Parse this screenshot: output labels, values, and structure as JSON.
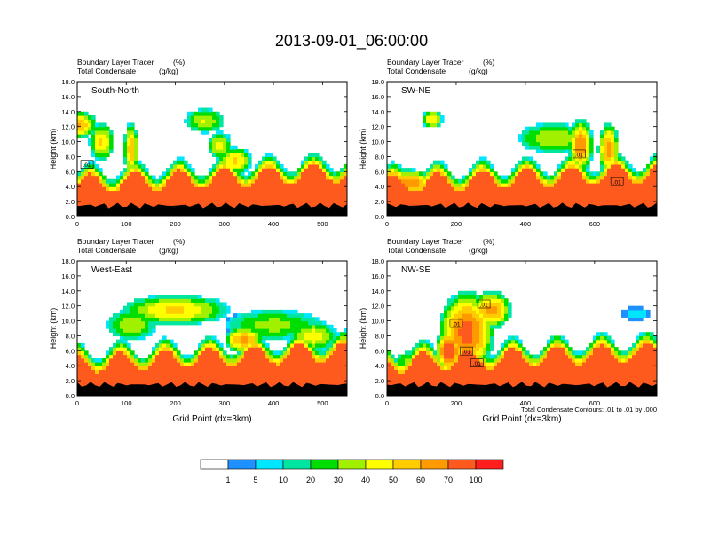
{
  "figure_title": "2013-09-01_06:00:00",
  "footnote": "Total Condensate Contours: .01 to .01 by .000",
  "chart_data": [
    {
      "type": "heatmap",
      "panel_label": "South-North",
      "title_left_1": "Boundary Layer Tracer",
      "title_unit_1": "(%)",
      "title_left_2": "Total Condensate",
      "title_unit_2": "(g/kg)",
      "xlabel": "",
      "ylabel": "Height (km)",
      "xlim": [
        0,
        550
      ],
      "ylim": [
        0,
        18
      ],
      "xticks": [
        0,
        100,
        200,
        300,
        400,
        500
      ],
      "yticks": [
        0,
        2,
        4,
        6,
        8,
        10,
        12,
        14,
        16,
        18
      ],
      "marker_x": 275,
      "marker_y": 1.0,
      "contour_labels": [
        {
          "x": 20,
          "y": 6.9,
          "text": ".01"
        }
      ],
      "plumes": [
        {
          "x": 0,
          "y": 12.3,
          "rx": 40,
          "ry": 1.8,
          "v": 55
        },
        {
          "x": 50,
          "y": 10,
          "rx": 25,
          "ry": 2.5,
          "v": 45
        },
        {
          "x": 110,
          "y": 9,
          "rx": 15,
          "ry": 3.5,
          "v": 50
        },
        {
          "x": 260,
          "y": 12.8,
          "rx": 40,
          "ry": 1.6,
          "v": 35
        },
        {
          "x": 290,
          "y": 9.5,
          "rx": 25,
          "ry": 1.8,
          "v": 40
        },
        {
          "x": 320,
          "y": 7.5,
          "rx": 35,
          "ry": 1.8,
          "v": 45
        }
      ]
    },
    {
      "type": "heatmap",
      "panel_label": "SW-NE",
      "title_left_1": "Boundary Layer Tracer",
      "title_unit_1": "(%)",
      "title_left_2": "Total Condensate",
      "title_unit_2": "(g/kg)",
      "xlabel": "",
      "ylabel": "Height (km)",
      "xlim": [
        0,
        780
      ],
      "ylim": [
        0,
        18
      ],
      "xticks": [
        0,
        200,
        400,
        600
      ],
      "yticks": [
        0,
        2,
        4,
        6,
        8,
        10,
        12,
        14,
        16,
        18
      ],
      "marker_x": 390,
      "marker_y": 1.0,
      "contour_labels": [
        {
          "x": 555,
          "y": 8.3,
          "text": ".01"
        },
        {
          "x": 665,
          "y": 4.6,
          "text": ".01"
        }
      ],
      "plumes": [
        {
          "x": 130,
          "y": 13,
          "rx": 30,
          "ry": 1.2,
          "v": 45
        },
        {
          "x": 480,
          "y": 10.5,
          "rx": 100,
          "ry": 2.0,
          "v": 35
        },
        {
          "x": 560,
          "y": 9.5,
          "rx": 35,
          "ry": 3.5,
          "v": 60
        },
        {
          "x": 640,
          "y": 9.0,
          "rx": 30,
          "ry": 3.5,
          "v": 55
        },
        {
          "x": 60,
          "y": 4.5,
          "rx": 80,
          "ry": 1.8,
          "v": 60
        }
      ]
    },
    {
      "type": "heatmap",
      "panel_label": "West-East",
      "title_left_1": "Boundary Layer Tracer",
      "title_unit_1": "(%)",
      "title_left_2": "Total Condensate",
      "title_unit_2": "(g/kg)",
      "xlabel": "Grid Point (dx=3km)",
      "ylabel": "Height (km)",
      "xlim": [
        0,
        550
      ],
      "ylim": [
        0,
        18
      ],
      "xticks": [
        0,
        100,
        200,
        300,
        400,
        500
      ],
      "yticks": [
        0,
        2,
        4,
        6,
        8,
        10,
        12,
        14,
        16,
        18
      ],
      "marker_x": 275,
      "marker_y": 1.0,
      "contour_labels": [],
      "plumes": [
        {
          "x": 200,
          "y": 11.5,
          "rx": 110,
          "ry": 2.0,
          "v": 45
        },
        {
          "x": 110,
          "y": 9.5,
          "rx": 50,
          "ry": 2.0,
          "v": 35
        },
        {
          "x": 400,
          "y": 9.5,
          "rx": 100,
          "ry": 2.0,
          "v": 30
        },
        {
          "x": 340,
          "y": 7.5,
          "rx": 40,
          "ry": 1.8,
          "v": 55
        },
        {
          "x": 480,
          "y": 8.0,
          "rx": 50,
          "ry": 2.0,
          "v": 40
        }
      ]
    },
    {
      "type": "heatmap",
      "panel_label": "NW-SE",
      "title_left_1": "Boundary Layer Tracer",
      "title_unit_1": "(%)",
      "title_left_2": "Total Condensate",
      "title_unit_2": "(g/kg)",
      "xlabel": "Grid Point (dx=3km)",
      "ylabel": "Height (km)",
      "xlim": [
        0,
        780
      ],
      "ylim": [
        0,
        18
      ],
      "xticks": [
        0,
        200,
        400,
        600
      ],
      "yticks": [
        0,
        2,
        4,
        6,
        8,
        10,
        12,
        14,
        16,
        18
      ],
      "marker_x": 390,
      "marker_y": 1.0,
      "contour_labels": [
        {
          "x": 280,
          "y": 12.2,
          "text": ".01"
        },
        {
          "x": 200,
          "y": 9.6,
          "text": ".01"
        },
        {
          "x": 230,
          "y": 5.9,
          "text": ".01"
        },
        {
          "x": 260,
          "y": 4.3,
          "text": ".01"
        }
      ],
      "plumes": [
        {
          "x": 230,
          "y": 8.5,
          "rx": 80,
          "ry": 5.5,
          "v": 65
        },
        {
          "x": 300,
          "y": 11.5,
          "rx": 60,
          "ry": 2.5,
          "v": 55
        },
        {
          "x": 180,
          "y": 6,
          "rx": 40,
          "ry": 3.0,
          "v": 70
        },
        {
          "x": 720,
          "y": 11,
          "rx": 40,
          "ry": 0.9,
          "v": 8
        },
        {
          "x": 80,
          "y": 4.5,
          "rx": 60,
          "ry": 1.5,
          "v": 35
        }
      ]
    }
  ],
  "colorbar": {
    "labels": [
      "1",
      "5",
      "10",
      "20",
      "30",
      "40",
      "50",
      "60",
      "70",
      "100"
    ],
    "colors": [
      "#ffffff",
      "#1e90ff",
      "#00e6ff",
      "#00e5a0",
      "#00dd00",
      "#a0f000",
      "#ffff00",
      "#ffcc00",
      "#ff9900",
      "#ff5a1e",
      "#ff1e1e"
    ]
  }
}
